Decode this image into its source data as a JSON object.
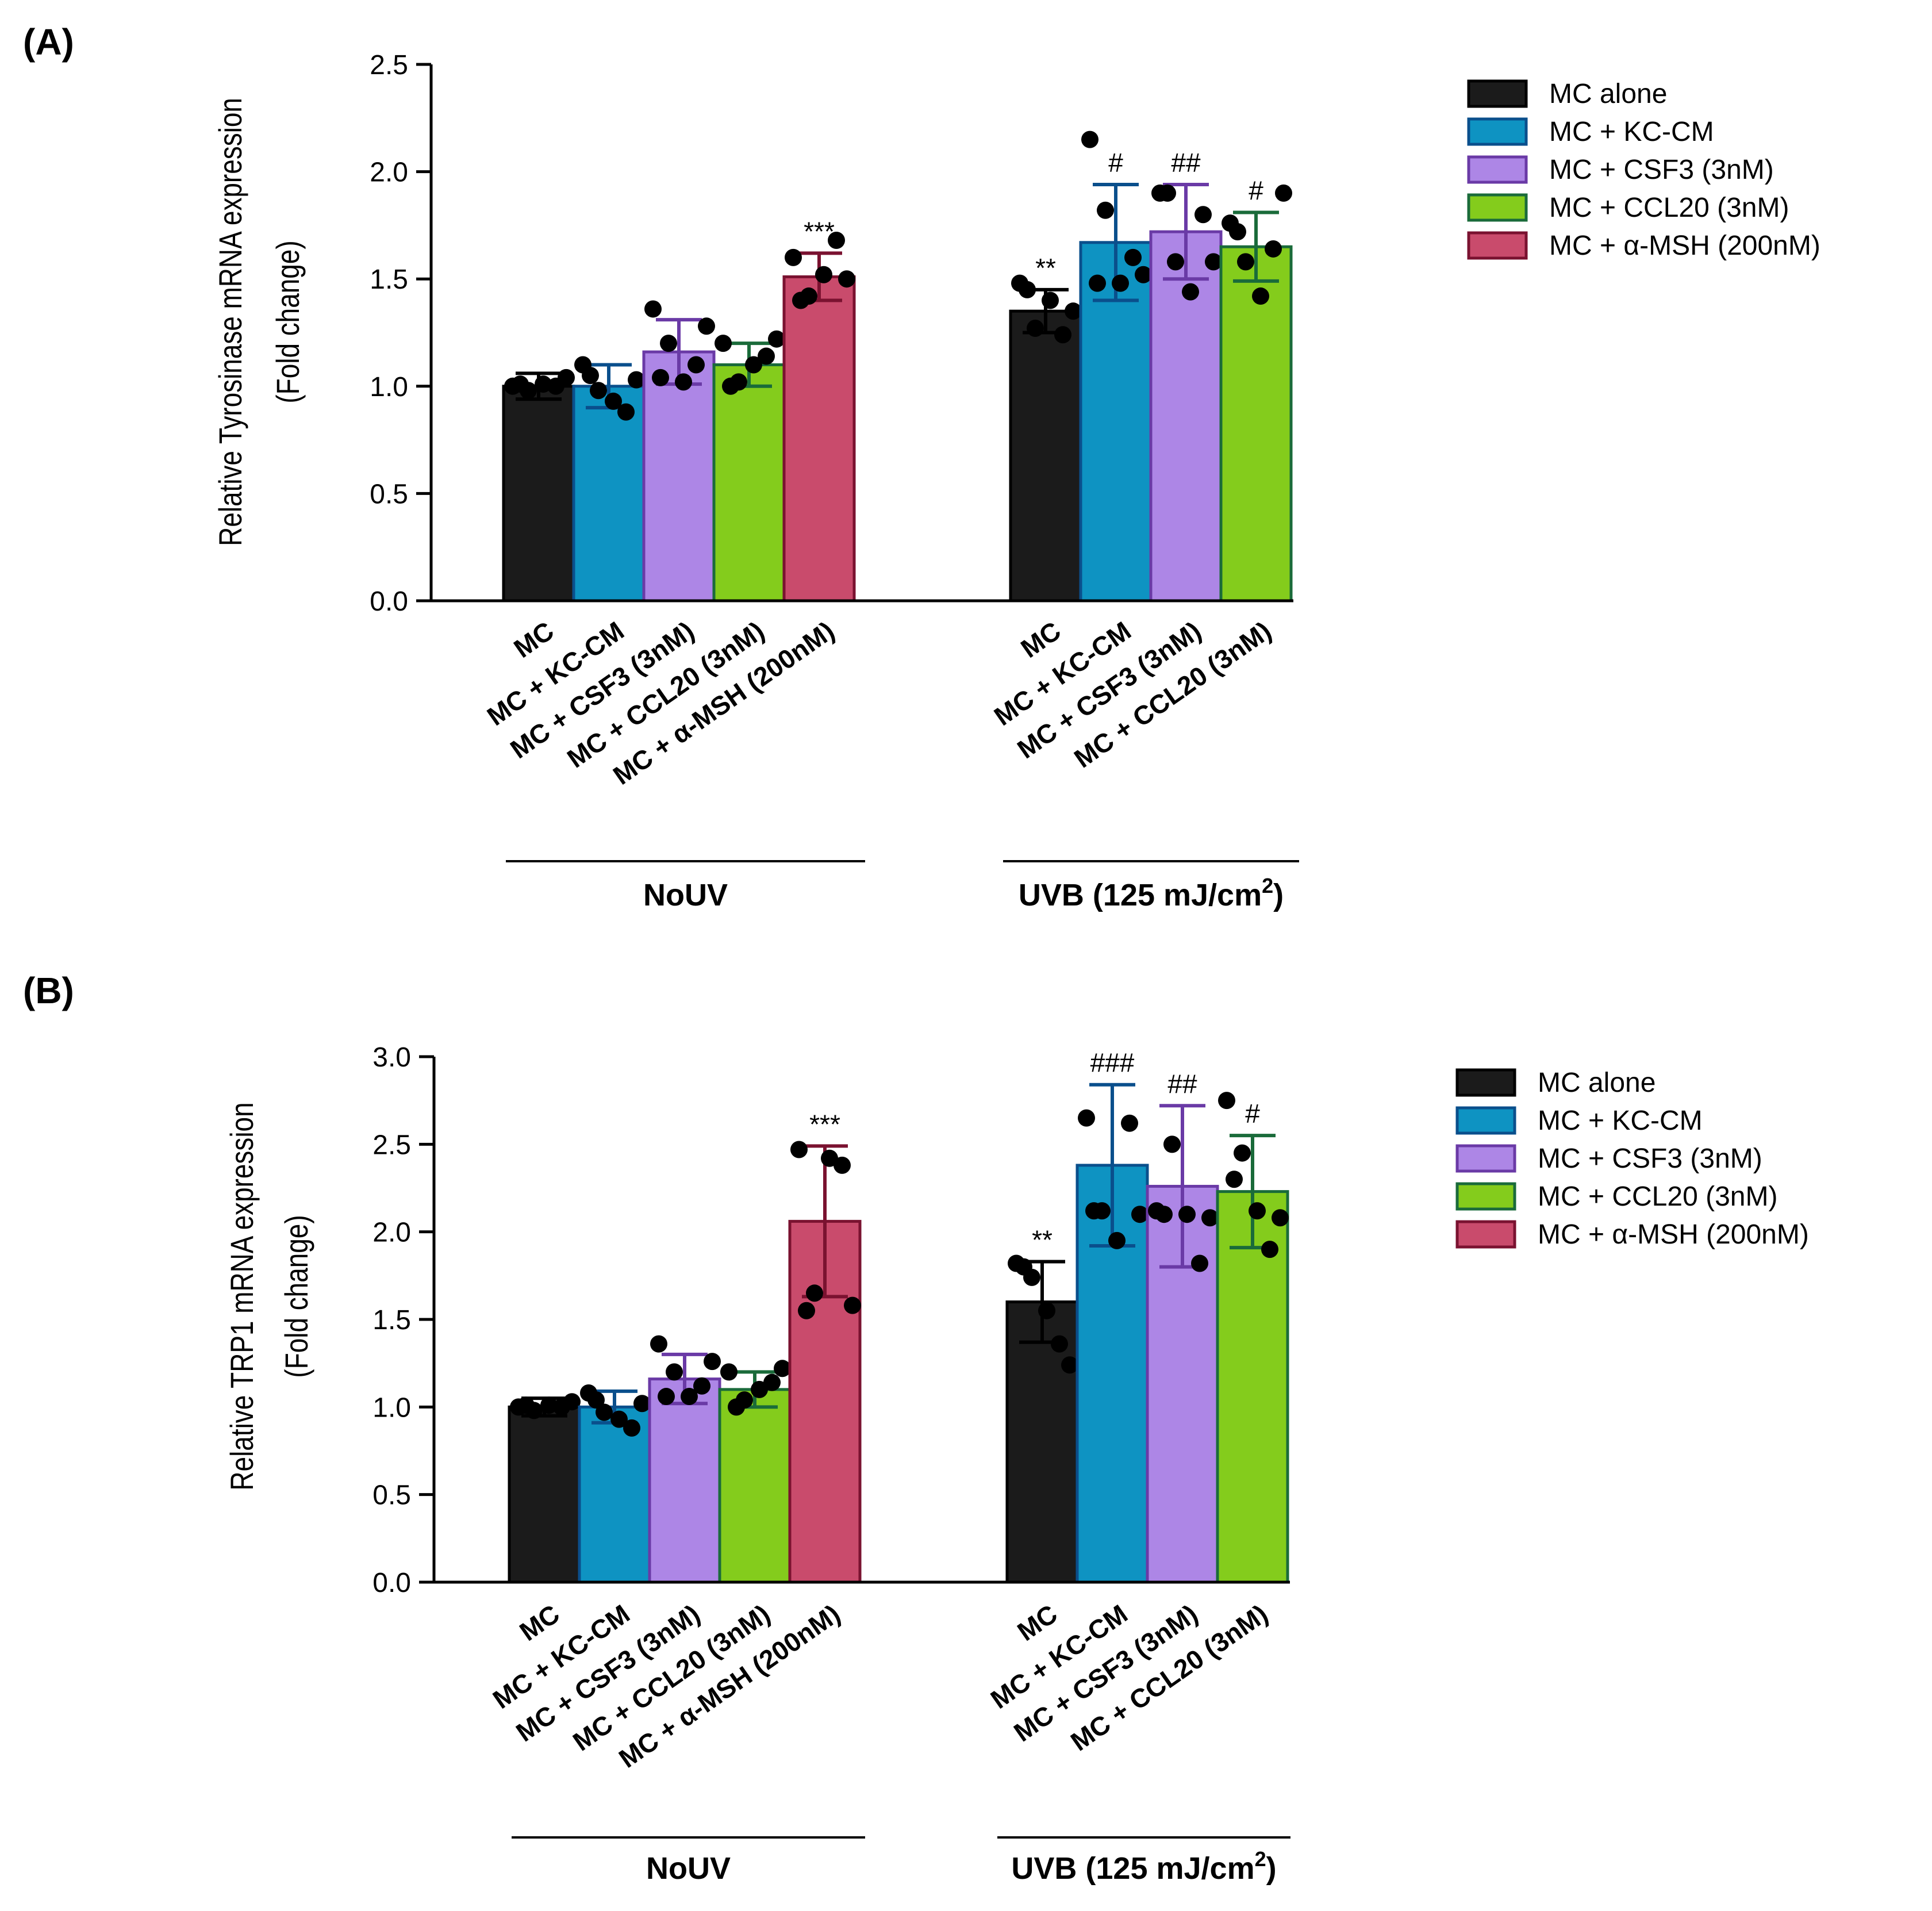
{
  "colors": {
    "MC alone": {
      "fill": "#1b1b1b",
      "stroke": "#000000"
    },
    "MC + KC-CM": {
      "fill": "#0e93c2",
      "stroke": "#0a4f8c"
    },
    "MC + CSF3 (3nM)": {
      "fill": "#ad86e6",
      "stroke": "#6a3aa6"
    },
    "MC + CCL20 (3nM)": {
      "fill": "#84cc1c",
      "stroke": "#1a6b3a"
    },
    "MC + α-MSH (200nM)": {
      "fill": "#c94b6c",
      "stroke": "#7a1230"
    }
  },
  "chart_data": [
    {
      "type": "bar",
      "panel_label": "(A)",
      "ylabel_line1": "Relative Tyrosinase mRNA expression",
      "ylabel_line2": "(Fold change)",
      "ylim": [
        0,
        2.5
      ],
      "yticks": [
        "0.0",
        "0.5",
        "1.0",
        "1.5",
        "2.0",
        "2.5"
      ],
      "legend": [
        "MC alone",
        "MC + KC-CM",
        "MC + CSF3 (3nM)",
        "MC + CCL20 (3nM)",
        "MC + α-MSH (200nM)"
      ],
      "groups": [
        {
          "label": "NoUV",
          "bars": [
            {
              "series": "MC alone",
              "tick": "MC",
              "value": 1.0,
              "err": 0.06,
              "points": [
                1.0,
                0.98,
                1.01,
                1.0,
                1.04,
                1.01
              ],
              "sig": ""
            },
            {
              "series": "MC + KC-CM",
              "tick": "MC + KC-CM",
              "value": 1.0,
              "err": 0.1,
              "points": [
                1.1,
                0.98,
                0.93,
                0.88,
                1.03,
                1.05
              ],
              "sig": ""
            },
            {
              "series": "MC + CSF3 (3nM)",
              "tick": "MC + CSF3 (3nM)",
              "value": 1.16,
              "err": 0.15,
              "points": [
                1.36,
                1.2,
                1.02,
                1.1,
                1.28,
                1.04
              ],
              "sig": ""
            },
            {
              "series": "MC + CCL20 (3nM)",
              "tick": "MC + CCL20 (3nM)",
              "value": 1.1,
              "err": 0.1,
              "points": [
                1.2,
                1.02,
                1.1,
                1.14,
                1.22,
                1.0
              ],
              "sig": ""
            },
            {
              "series": "MC + α-MSH (200nM)",
              "tick": "MC + α-MSH (200nM)",
              "value": 1.51,
              "err": 0.11,
              "points": [
                1.6,
                1.42,
                1.52,
                1.68,
                1.5,
                1.4
              ],
              "sig": "***"
            }
          ]
        },
        {
          "label": "UVB (125 mJ/cm",
          "label_sup": "2",
          "label_end": ")",
          "bars": [
            {
              "series": "MC alone",
              "tick": "MC",
              "value": 1.35,
              "err": 0.1,
              "points": [
                1.48,
                1.27,
                1.4,
                1.24,
                1.35,
                1.45
              ],
              "sig": "**"
            },
            {
              "series": "MC + KC-CM",
              "tick": "MC + KC-CM",
              "value": 1.67,
              "err": 0.27,
              "points": [
                2.15,
                1.82,
                1.48,
                1.6,
                1.52,
                1.48
              ],
              "sig": "#"
            },
            {
              "series": "MC + CSF3 (3nM)",
              "tick": "MC + CSF3 (3nM)",
              "value": 1.72,
              "err": 0.22,
              "points": [
                1.9,
                1.58,
                1.44,
                1.8,
                1.58,
                1.9
              ],
              "sig": "##"
            },
            {
              "series": "MC + CCL20 (3nM)",
              "tick": "MC + CCL20 (3nM)",
              "value": 1.65,
              "err": 0.16,
              "points": [
                1.76,
                1.58,
                1.42,
                1.64,
                1.9,
                1.72
              ],
              "sig": "#"
            }
          ]
        }
      ]
    },
    {
      "type": "bar",
      "panel_label": "(B)",
      "ylabel_line1": "Relative TRP1 mRNA expression",
      "ylabel_line2": "(Fold change)",
      "ylim": [
        0,
        3.0
      ],
      "yticks": [
        "0.0",
        "0.5",
        "1.0",
        "1.5",
        "2.0",
        "2.5",
        "3.0"
      ],
      "legend": [
        "MC alone",
        "MC + KC-CM",
        "MC + CSF3 (3nM)",
        "MC + CCL20 (3nM)",
        "MC + α-MSH (200nM)"
      ],
      "groups": [
        {
          "label": "NoUV",
          "bars": [
            {
              "series": "MC alone",
              "tick": "MC",
              "value": 1.0,
              "err": 0.05,
              "points": [
                1.0,
                0.98,
                1.01,
                1.0,
                1.03,
                1.01
              ],
              "sig": ""
            },
            {
              "series": "MC + KC-CM",
              "tick": "MC + KC-CM",
              "value": 1.0,
              "err": 0.09,
              "points": [
                1.08,
                0.97,
                0.93,
                0.88,
                1.02,
                1.04
              ],
              "sig": ""
            },
            {
              "series": "MC + CSF3 (3nM)",
              "tick": "MC + CSF3 (3nM)",
              "value": 1.16,
              "err": 0.14,
              "points": [
                1.36,
                1.2,
                1.06,
                1.12,
                1.26,
                1.06
              ],
              "sig": ""
            },
            {
              "series": "MC + CCL20 (3nM)",
              "tick": "MC + CCL20 (3nM)",
              "value": 1.1,
              "err": 0.1,
              "points": [
                1.2,
                1.04,
                1.1,
                1.14,
                1.22,
                1.0
              ],
              "sig": ""
            },
            {
              "series": "MC + α-MSH (200nM)",
              "tick": "MC + α-MSH (200nM)",
              "value": 2.06,
              "err": 0.43,
              "points": [
                2.47,
                1.65,
                2.42,
                2.38,
                1.58,
                1.55
              ],
              "sig": "***"
            }
          ]
        },
        {
          "label": "UVB (125 mJ/cm",
          "label_sup": "2",
          "label_end": ")",
          "bars": [
            {
              "series": "MC alone",
              "tick": "MC",
              "value": 1.6,
              "err": 0.23,
              "points": [
                1.82,
                1.74,
                1.55,
                1.36,
                1.24,
                1.8
              ],
              "sig": "**"
            },
            {
              "series": "MC + KC-CM",
              "tick": "MC + KC-CM",
              "value": 2.38,
              "err": 0.46,
              "points": [
                2.65,
                2.12,
                1.95,
                2.62,
                2.1,
                2.12
              ],
              "sig": "###"
            },
            {
              "series": "MC + CSF3 (3nM)",
              "tick": "MC + CSF3 (3nM)",
              "value": 2.26,
              "err": 0.46,
              "points": [
                2.12,
                2.5,
                2.1,
                1.82,
                2.08,
                2.1
              ],
              "sig": "##"
            },
            {
              "series": "MC + CCL20 (3nM)",
              "tick": "MC + CCL20 (3nM)",
              "value": 2.23,
              "err": 0.32,
              "points": [
                2.75,
                2.45,
                2.12,
                1.9,
                2.08,
                2.3
              ],
              "sig": "#"
            }
          ]
        }
      ]
    }
  ]
}
